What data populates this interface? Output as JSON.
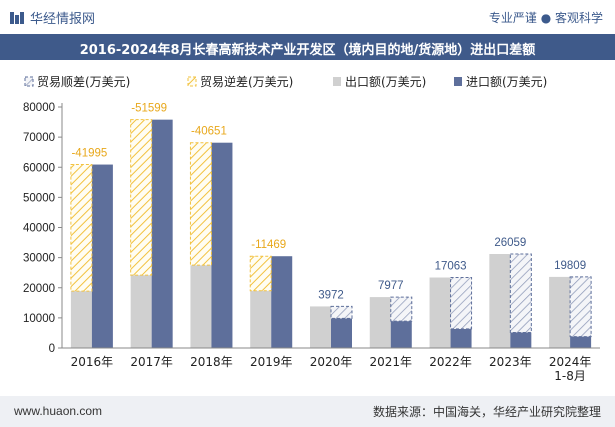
{
  "header": {
    "brand": "华经情报网",
    "tagline": "专业严谨 ● 客观科学"
  },
  "chart_title": "2016-2024年8月长春高新技术产业开发区（境内目的地/货源地）进出口差额",
  "footer": {
    "website": "www.huaon.com",
    "source": "数据来源：中国海关，华经产业研究院整理"
  },
  "colors": {
    "title_bg": "#3f5a8a",
    "export": "#d0d0d0",
    "import": "#5e6f9b",
    "surplus": "#5e6f9b",
    "deficit": "#f2c240"
  },
  "chart_data": {
    "type": "bar",
    "title": "2016-2024年8月长春高新技术产业开发区（境内目的地/货源地）进出口差额",
    "categories": [
      "2016年",
      "2017年",
      "2018年",
      "2019年",
      "2020年",
      "2021年",
      "2022年",
      "2023年",
      "2024年\n1-8月"
    ],
    "series": [
      {
        "name": "贸易顺差(万美元)",
        "values": [
          null,
          null,
          null,
          null,
          3972,
          7977,
          17063,
          26059,
          19809
        ]
      },
      {
        "name": "贸易逆差(万美元)",
        "values": [
          -41995,
          -51599,
          -40651,
          -11469,
          null,
          null,
          null,
          null,
          null
        ]
      },
      {
        "name": "出口额(万美元)",
        "values": [
          18900,
          24200,
          27500,
          19000,
          13800,
          16900,
          23400,
          31200,
          23600
        ]
      },
      {
        "name": "进口额(万美元)",
        "values": [
          60895,
          75799,
          68151,
          30469,
          9828,
          8923,
          6337,
          5141,
          3791
        ]
      }
    ],
    "data_labels": [
      "-41995",
      "-51599",
      "-40651",
      "-11469",
      "3972",
      "7977",
      "17063",
      "26059",
      "19809"
    ],
    "ylim": [
      0,
      80000
    ],
    "yticks": [
      0,
      10000,
      20000,
      30000,
      40000,
      50000,
      60000,
      70000,
      80000
    ],
    "grid": false,
    "legend_position": "top"
  }
}
